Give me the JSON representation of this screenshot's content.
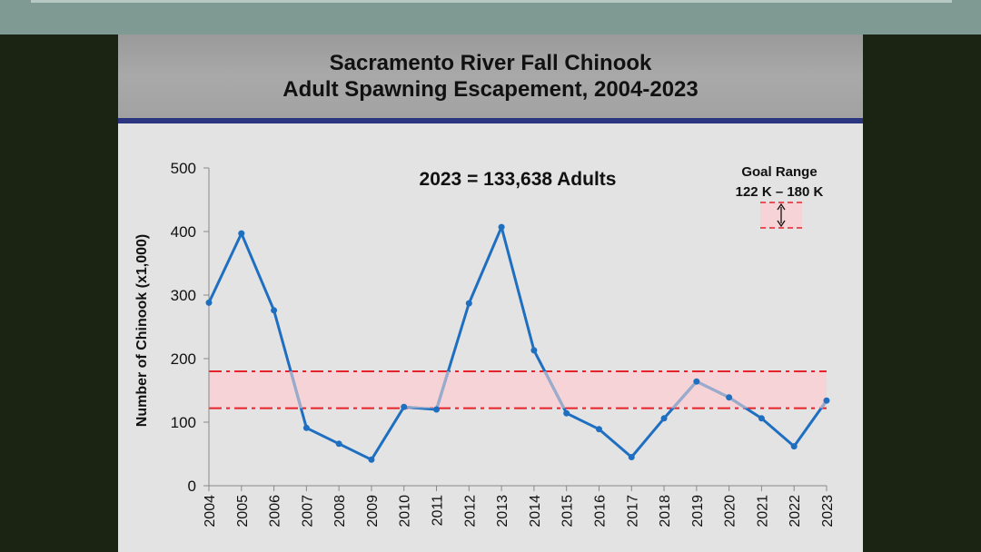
{
  "slide": {
    "title_line1": "Sacramento River Fall Chinook",
    "title_line2": "Adult Spawning Escapement, 2004-2023"
  },
  "chart_data": {
    "type": "line",
    "title": "Sacramento River Fall Chinook Adult Spawning Escapement, 2004-2023",
    "xlabel": "",
    "ylabel": "Number of Chinook (x1,000)",
    "ylim": [
      0,
      500
    ],
    "yticks": [
      0,
      100,
      200,
      300,
      400,
      500
    ],
    "categories": [
      "2004",
      "2005",
      "2006",
      "2007",
      "2008",
      "2009",
      "2010",
      "2011",
      "2012",
      "2013",
      "2014",
      "2015",
      "2016",
      "2017",
      "2018",
      "2019",
      "2020",
      "2021",
      "2022",
      "2023"
    ],
    "series": [
      {
        "name": "Adult spawning escapement",
        "color": "#1f6fc1",
        "values": [
          288,
          397,
          276,
          91,
          66,
          41,
          124,
          120,
          287,
          407,
          213,
          114,
          89,
          45,
          106,
          164,
          139,
          106,
          62,
          134
        ]
      }
    ],
    "goal_range": {
      "low": 122,
      "high": 180,
      "line_color": "#e8222a",
      "fill_color": "#f6d3d6"
    },
    "annotations": {
      "headline": "2023 = 133,638 Adults",
      "goal_label_1": "Goal Range",
      "goal_label_2": "122 K – 180 K"
    }
  }
}
